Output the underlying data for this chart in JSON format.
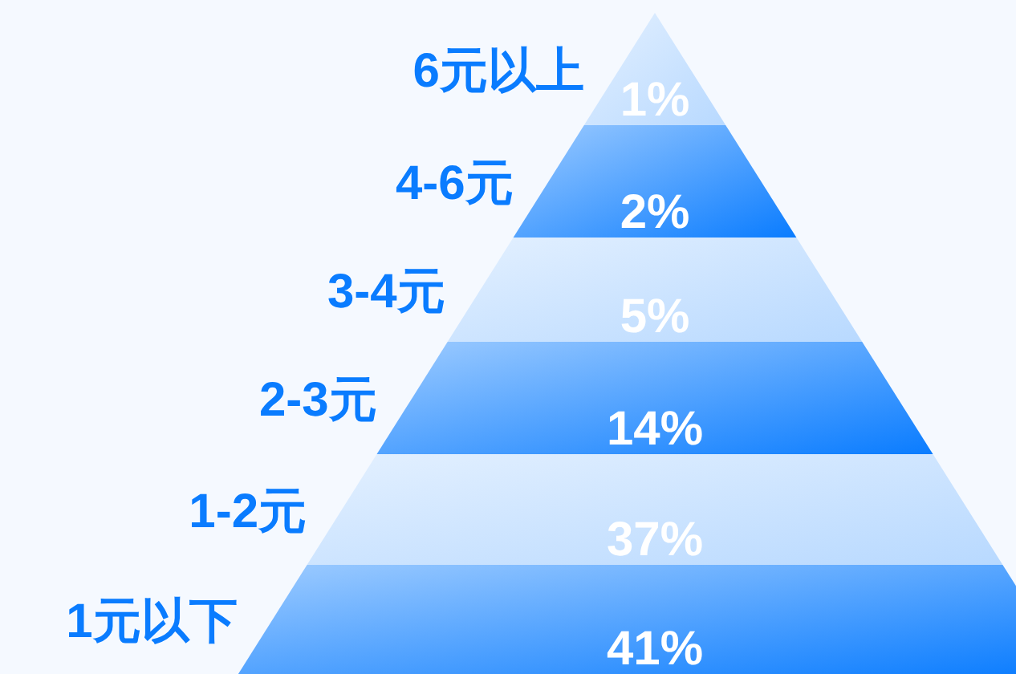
{
  "chart_data": {
    "type": "other",
    "categories": [
      "6元以上",
      "4-6元",
      "3-4元",
      "2-3元",
      "1-2元",
      "1元以下"
    ],
    "values": [
      1,
      2,
      5,
      14,
      37,
      41
    ],
    "value_labels": [
      "1%",
      "2%",
      "5%",
      "14%",
      "37%",
      "41%"
    ],
    "colors": [
      "#b8d9ff",
      "#0a7cff",
      "#b8d9ff",
      "#0a7cff",
      "#b8d9ff",
      "#0a7cff"
    ]
  }
}
